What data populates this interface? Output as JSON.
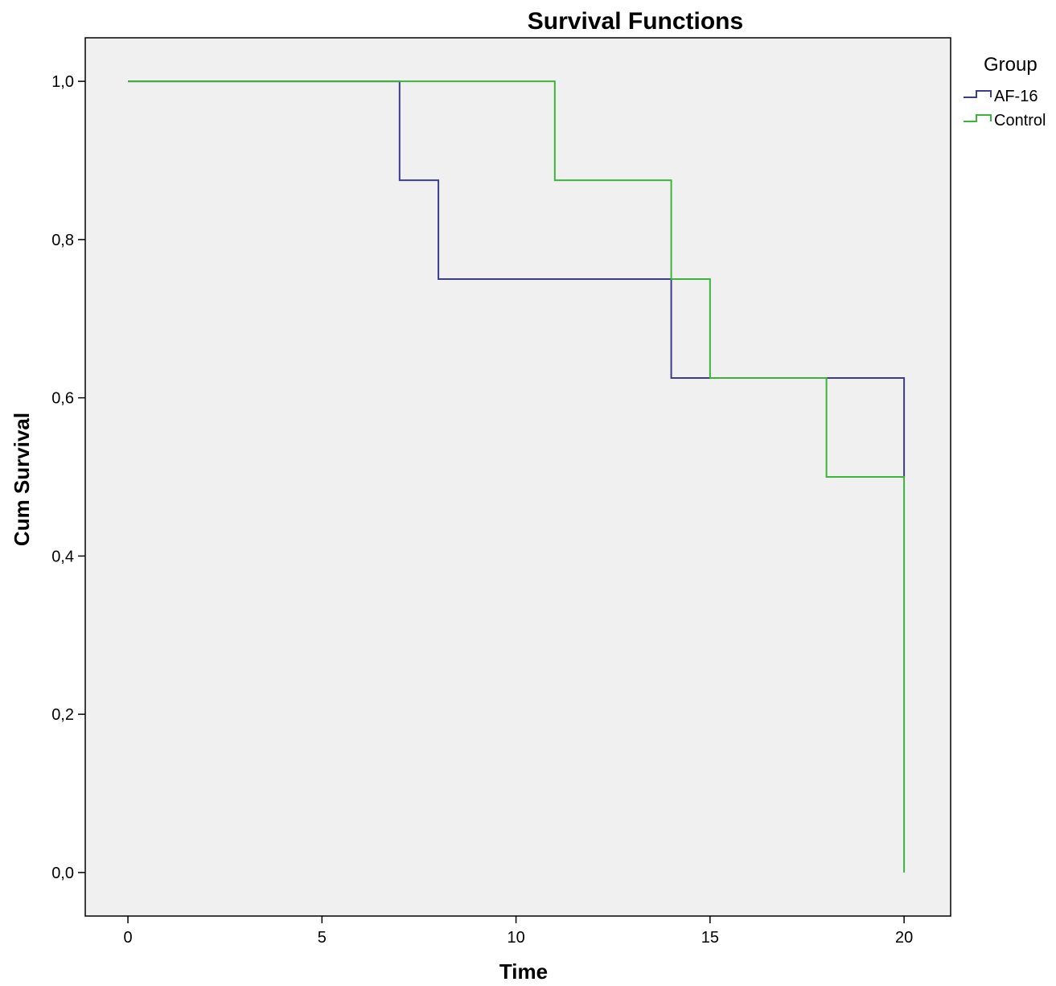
{
  "chart_data": {
    "type": "line",
    "step": true,
    "title": "Survival Functions",
    "xlabel": "Time",
    "ylabel": "Cum Survival",
    "xlim": [
      -1.1,
      21.2
    ],
    "ylim": [
      -0.055,
      1.055
    ],
    "xticks": [
      0,
      5,
      10,
      15,
      20
    ],
    "xtick_labels": [
      "0",
      "5",
      "10",
      "15",
      "20"
    ],
    "yticks": [
      0.0,
      0.2,
      0.4,
      0.6,
      0.8,
      1.0
    ],
    "ytick_labels": [
      "0,0",
      "0,2",
      "0,4",
      "0,6",
      "0,8",
      "1,0"
    ],
    "grid": false,
    "plot_background": "#f0f0f0",
    "legend": {
      "title": "Group",
      "placement": "right-top outside"
    },
    "series": [
      {
        "name": "AF-16",
        "color": "#3c3c8c",
        "points": [
          {
            "x": 0,
            "y": 1.0
          },
          {
            "x": 7,
            "y": 0.875
          },
          {
            "x": 8,
            "y": 0.75
          },
          {
            "x": 14,
            "y": 0.625
          },
          {
            "x": 20,
            "y": 0.5
          }
        ],
        "end_x": 20
      },
      {
        "name": "Control",
        "color": "#3cb43c",
        "points": [
          {
            "x": 0,
            "y": 1.0
          },
          {
            "x": 11,
            "y": 0.875
          },
          {
            "x": 14,
            "y": 0.75
          },
          {
            "x": 15,
            "y": 0.625
          },
          {
            "x": 18,
            "y": 0.5
          },
          {
            "x": 20,
            "y": 0.0
          }
        ],
        "end_x": 20
      }
    ]
  }
}
